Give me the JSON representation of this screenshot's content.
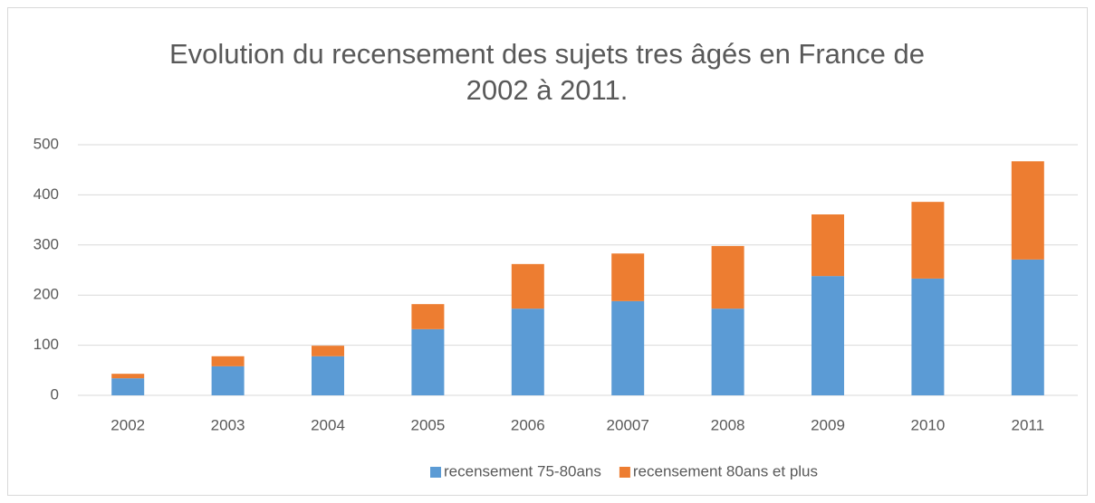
{
  "chart_data": {
    "type": "stacked_bar",
    "title": "Evolution du recensement des sujets tres âgés en France de 2002 à 2011.",
    "categories": [
      "2002",
      "2003",
      "2004",
      "2005",
      "2006",
      "20007",
      "2008",
      "2009",
      "2010",
      "2011"
    ],
    "series": [
      {
        "name": "recensement 75-80ans",
        "color": "#5b9bd5",
        "values": [
          34,
          58,
          78,
          132,
          173,
          188,
          173,
          238,
          233,
          271
        ]
      },
      {
        "name": "recensement 80ans et plus",
        "color": "#ed7d31",
        "values": [
          9,
          20,
          21,
          50,
          89,
          95,
          125,
          123,
          153,
          196
        ]
      }
    ],
    "ylim": [
      0,
      500
    ],
    "yticks": [
      0,
      100,
      200,
      300,
      400,
      500
    ],
    "grid": true,
    "legend": "bottom"
  }
}
